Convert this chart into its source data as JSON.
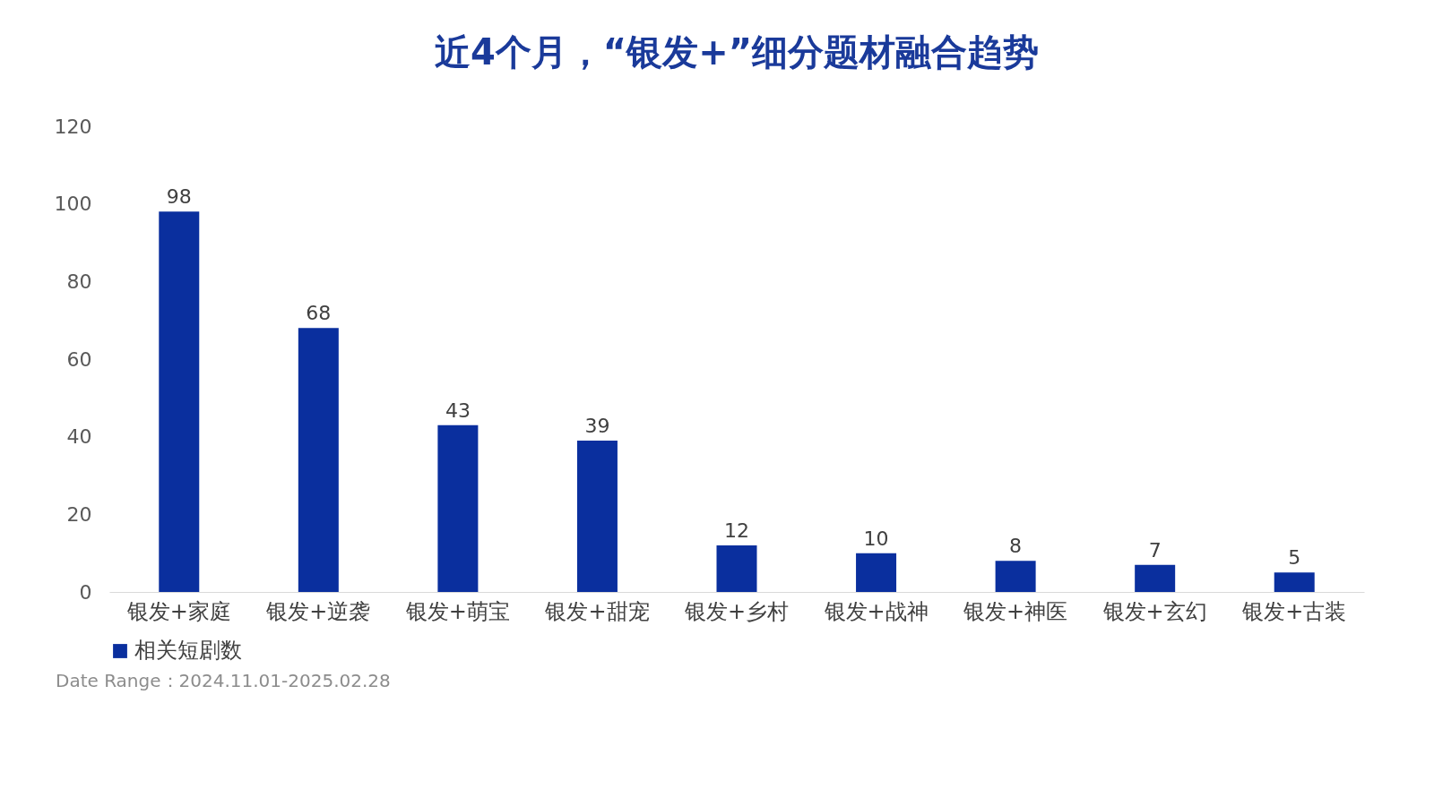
{
  "chart_data": {
    "type": "bar",
    "title": "近4个月，“银发+”细分题材融合趋势",
    "categories": [
      "银发+家庭",
      "银发+逆袭",
      "银发+萌宝",
      "银发+甜宠",
      "银发+乡村",
      "银发+战神",
      "银发+神医",
      "银发+玄幻",
      "银发+古装"
    ],
    "series": [
      {
        "name": "相关短剧数",
        "color": "#0a2f9e",
        "values": [
          98,
          68,
          43,
          39,
          12,
          10,
          8,
          7,
          5
        ]
      }
    ],
    "ylim": [
      0,
      120
    ],
    "yticks": [
      0,
      20,
      40,
      60,
      80,
      100,
      120
    ],
    "grid": false,
    "legend": "bottom",
    "data_labels": true,
    "annotations": [
      "Date Range：2024.11.01-2025.02.28"
    ]
  }
}
